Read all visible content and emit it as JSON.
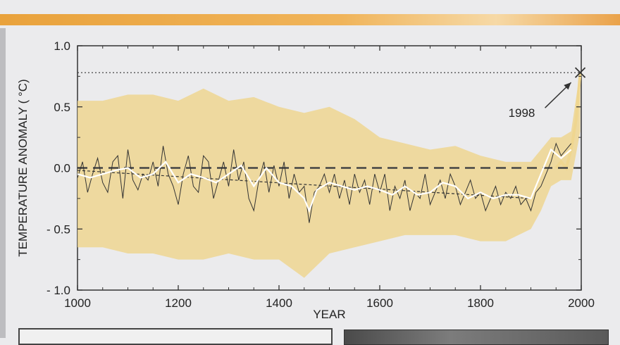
{
  "chart_data": {
    "type": "line",
    "xlabel": "YEAR",
    "ylabel": "TEMPERATURE ANOMALY ( °C)",
    "xlim": [
      1000,
      2000
    ],
    "ylim": [
      -1.0,
      1.0
    ],
    "x_ticks": [
      "1000",
      "1200",
      "1400",
      "1600",
      "1800",
      "2000"
    ],
    "x_tick_values": [
      1000,
      1200,
      1400,
      1600,
      1800,
      2000
    ],
    "y_ticks": [
      "1.0",
      "0.5",
      "0.0",
      "- 0.5",
      "- 1.0"
    ],
    "y_tick_values": [
      1.0,
      0.5,
      0.0,
      -0.5,
      -1.0
    ],
    "annotation": {
      "label": "1998",
      "x": 1998,
      "y": 0.78
    },
    "reference_lines": [
      {
        "style": "dashed",
        "y": 0.0
      },
      {
        "style": "dotted",
        "y": 0.78
      }
    ],
    "series": [
      {
        "kind": "uncertainty_band",
        "color": "#efd690",
        "x": [
          1000,
          1050,
          1100,
          1150,
          1200,
          1250,
          1300,
          1350,
          1400,
          1450,
          1500,
          1550,
          1600,
          1650,
          1700,
          1750,
          1800,
          1850,
          1900,
          1920,
          1940,
          1960,
          1980,
          1998
        ],
        "upper": [
          0.55,
          0.55,
          0.6,
          0.6,
          0.55,
          0.65,
          0.55,
          0.58,
          0.5,
          0.45,
          0.5,
          0.4,
          0.25,
          0.2,
          0.15,
          0.18,
          0.1,
          0.05,
          0.05,
          0.15,
          0.25,
          0.25,
          0.3,
          0.8
        ],
        "lower": [
          -0.65,
          -0.65,
          -0.7,
          -0.7,
          -0.75,
          -0.75,
          -0.7,
          -0.75,
          -0.75,
          -0.9,
          -0.7,
          -0.65,
          -0.6,
          -0.55,
          -0.55,
          -0.55,
          -0.6,
          -0.6,
          -0.5,
          -0.35,
          -0.15,
          -0.1,
          -0.1,
          0.3
        ]
      },
      {
        "kind": "annual_reconstruction",
        "color": "#333333",
        "x": [
          1000,
          1010,
          1020,
          1030,
          1040,
          1050,
          1060,
          1070,
          1080,
          1090,
          1100,
          1110,
          1120,
          1130,
          1140,
          1150,
          1160,
          1170,
          1180,
          1190,
          1200,
          1210,
          1220,
          1230,
          1240,
          1250,
          1260,
          1270,
          1280,
          1290,
          1300,
          1310,
          1320,
          1330,
          1340,
          1350,
          1360,
          1370,
          1380,
          1390,
          1400,
          1410,
          1420,
          1430,
          1440,
          1450,
          1460,
          1470,
          1480,
          1490,
          1500,
          1510,
          1520,
          1530,
          1540,
          1550,
          1560,
          1570,
          1580,
          1590,
          1600,
          1610,
          1620,
          1630,
          1640,
          1650,
          1660,
          1670,
          1680,
          1690,
          1700,
          1710,
          1720,
          1730,
          1740,
          1750,
          1760,
          1770,
          1780,
          1790,
          1800,
          1810,
          1820,
          1830,
          1840,
          1850,
          1860,
          1870,
          1880,
          1890,
          1900,
          1910,
          1920,
          1930,
          1940,
          1950,
          1960,
          1970,
          1980
        ],
        "y": [
          -0.08,
          0.05,
          -0.2,
          -0.05,
          0.08,
          -0.12,
          -0.2,
          0.05,
          0.1,
          -0.25,
          0.15,
          -0.1,
          -0.18,
          -0.05,
          -0.1,
          0.05,
          -0.15,
          0.18,
          -0.05,
          -0.15,
          -0.3,
          -0.05,
          0.1,
          -0.15,
          -0.2,
          0.1,
          0.05,
          -0.25,
          -0.1,
          0.05,
          -0.15,
          0.15,
          -0.1,
          0.05,
          -0.25,
          -0.35,
          -0.1,
          0.05,
          -0.2,
          0.02,
          -0.15,
          0.05,
          -0.25,
          -0.05,
          -0.2,
          -0.15,
          -0.45,
          -0.2,
          -0.15,
          -0.05,
          -0.2,
          -0.05,
          -0.25,
          -0.1,
          -0.3,
          -0.05,
          -0.2,
          -0.1,
          -0.3,
          -0.05,
          -0.2,
          -0.05,
          -0.35,
          -0.15,
          -0.25,
          -0.1,
          -0.35,
          -0.2,
          -0.25,
          -0.05,
          -0.3,
          -0.2,
          -0.1,
          -0.25,
          -0.05,
          -0.15,
          -0.3,
          -0.2,
          -0.1,
          -0.25,
          -0.2,
          -0.35,
          -0.25,
          -0.15,
          -0.3,
          -0.2,
          -0.25,
          -0.15,
          -0.3,
          -0.25,
          -0.35,
          -0.2,
          -0.15,
          -0.05,
          0.05,
          0.2,
          0.1,
          0.15,
          0.2
        ]
      },
      {
        "kind": "smoothed_40yr",
        "color": "#ffffff",
        "x": [
          1000,
          1025,
          1050,
          1075,
          1100,
          1125,
          1150,
          1175,
          1200,
          1225,
          1250,
          1275,
          1300,
          1325,
          1350,
          1375,
          1400,
          1425,
          1450,
          1460,
          1475,
          1500,
          1525,
          1550,
          1575,
          1600,
          1625,
          1650,
          1675,
          1700,
          1725,
          1750,
          1775,
          1800,
          1825,
          1850,
          1875,
          1900,
          1920,
          1940,
          1960,
          1980
        ],
        "y": [
          -0.05,
          -0.08,
          -0.05,
          -0.02,
          0.0,
          -0.08,
          -0.05,
          0.05,
          -0.12,
          -0.05,
          -0.08,
          -0.12,
          -0.05,
          0.02,
          -0.15,
          0.0,
          -0.12,
          -0.15,
          -0.25,
          -0.35,
          -0.18,
          -0.12,
          -0.15,
          -0.18,
          -0.15,
          -0.18,
          -0.22,
          -0.15,
          -0.22,
          -0.2,
          -0.12,
          -0.15,
          -0.25,
          -0.2,
          -0.25,
          -0.22,
          -0.22,
          -0.25,
          -0.05,
          0.15,
          0.08,
          0.15
        ]
      },
      {
        "kind": "linear_trend",
        "style": "dashed-thin",
        "color": "#333333",
        "x": [
          1000,
          1900
        ],
        "y": [
          -0.02,
          -0.25
        ]
      },
      {
        "kind": "instrumental",
        "color": "#efd690",
        "x": [
          1950,
          1960,
          1970,
          1980,
          1990,
          1998
        ],
        "y": [
          0.0,
          0.05,
          0.0,
          0.15,
          0.4,
          0.78
        ]
      }
    ]
  }
}
